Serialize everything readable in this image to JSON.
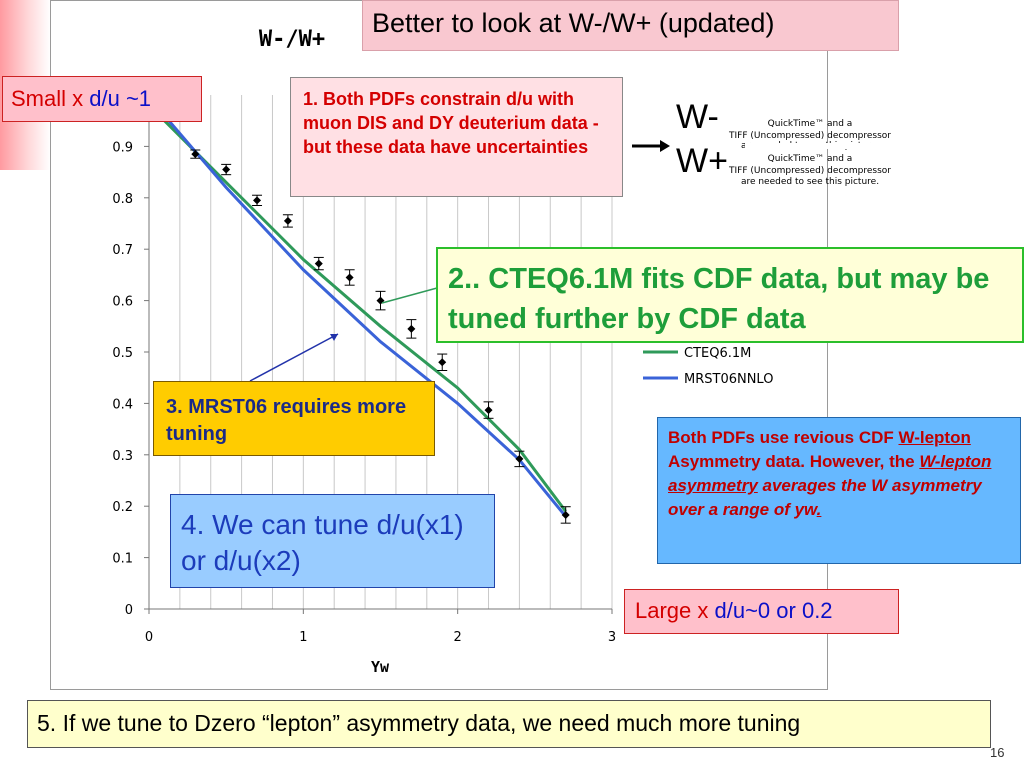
{
  "slide": {
    "title": "Better to look at W-/W+ (updated)",
    "page_number": "16",
    "small_x": {
      "prefix": "Small x ",
      "value": "d/u ~1"
    },
    "large_x": {
      "prefix": "Large x ",
      "value": "d/u~0 or 0.2"
    },
    "ratio_numerator": "W-",
    "ratio_denominator": "W+",
    "quicktime_1": [
      "QuickTime™ and a",
      "TIFF (Uncompressed) decompressor",
      "are needed to see this picture."
    ],
    "quicktime_2": [
      "QuickTime™ and a",
      "TIFF (Uncompressed) decompressor",
      "are needed to see this picture."
    ],
    "note1": "1. Both PDFs constrain d/u with muon DIS and DY deuterium data -but these data have uncertainties",
    "note2": "2.. CTEQ6.1M fits CDF data, but may be tuned further by CDF data",
    "note3": "3. MRST06 requires more tuning",
    "note4": "4. We can tune d/u(x1) or d/u(x2)",
    "note_pdfs": {
      "a": "Both PDFs use revious CDF ",
      "b": "W-lepton",
      "c": " Asymmetry data. However, the ",
      "d": "W-lepton asymmetry",
      "e": " averages the W asymmetry over a range of yw",
      "f": "."
    },
    "bottom": "5. If we tune to Dzero “lepton” asymmetry data, we need much more tuning"
  },
  "colors": {
    "cteq": "#2f9a5a",
    "mrst": "#3a63d8",
    "data": "#000000"
  },
  "chart_data": {
    "type": "line",
    "title": "W-/W+",
    "xlabel": "Yw",
    "ylabel": "",
    "xlim": [
      0,
      3
    ],
    "ylim": [
      0,
      1
    ],
    "x_ticks": [
      "0",
      "1",
      "2",
      "3"
    ],
    "y_ticks": [
      "0",
      "0.1",
      "0.2",
      "0.3",
      "0.4",
      "0.5",
      "0.6",
      "0.7",
      "0.8",
      "0.9"
    ],
    "grid": "vertical",
    "legend": {
      "placement": "right",
      "entries": [
        "CTEQ6.1M",
        "MRST06NNLO"
      ]
    },
    "series": [
      {
        "name": "CTEQ6.1M",
        "style": "line",
        "x": [
          0.1,
          0.5,
          1.0,
          1.5,
          2.0,
          2.4,
          2.7
        ],
        "y": [
          0.95,
          0.83,
          0.68,
          0.55,
          0.43,
          0.31,
          0.19
        ]
      },
      {
        "name": "MRST06NNLO",
        "style": "line",
        "x": [
          0.1,
          0.5,
          1.0,
          1.5,
          2.0,
          2.4,
          2.7
        ],
        "y": [
          0.96,
          0.82,
          0.66,
          0.52,
          0.4,
          0.29,
          0.18
        ]
      },
      {
        "name": "",
        "style": "points",
        "x": [
          0.1,
          0.3,
          0.5,
          0.7,
          0.9,
          1.1,
          1.3,
          1.5,
          1.7,
          1.9,
          2.2,
          2.4,
          2.7
        ],
        "y": [
          0.97,
          0.885,
          0.855,
          0.795,
          0.755,
          0.672,
          0.645,
          0.6,
          0.545,
          0.48,
          0.387,
          0.292,
          0.183
        ],
        "err": [
          0.01,
          0.008,
          0.01,
          0.01,
          0.012,
          0.012,
          0.015,
          0.018,
          0.018,
          0.016,
          0.016,
          0.015,
          0.016
        ]
      }
    ]
  }
}
